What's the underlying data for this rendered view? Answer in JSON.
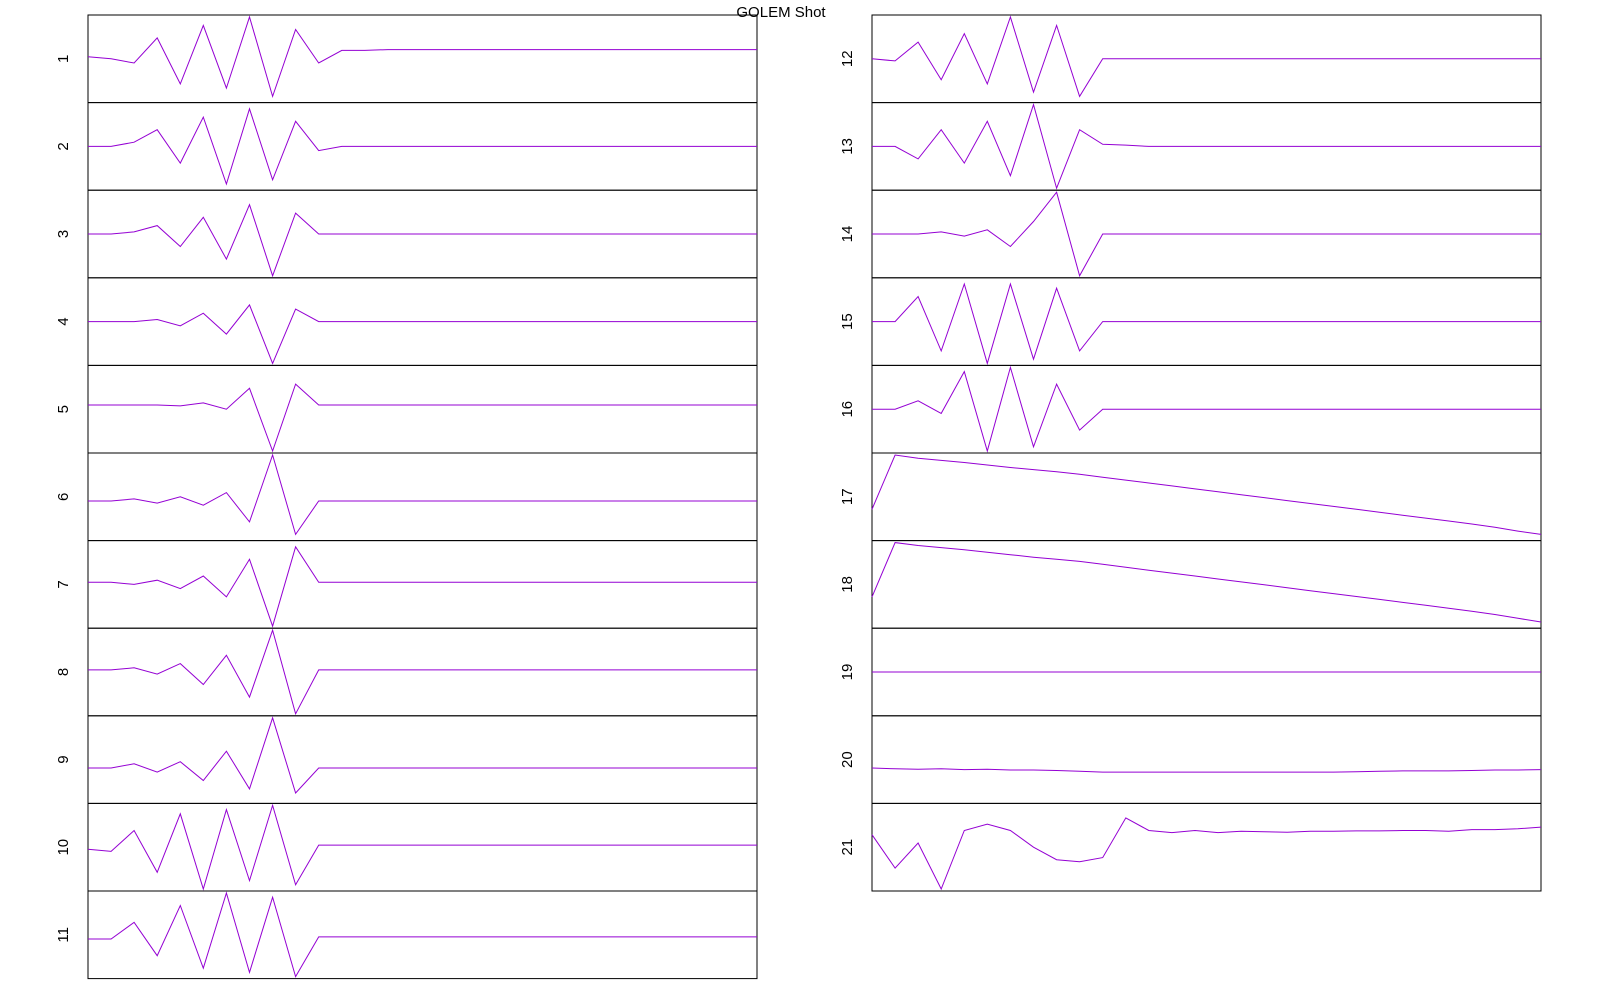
{
  "title": "GOLEM Shot",
  "chart_data": [
    {
      "type": "line",
      "ylabel": "1",
      "color": "#9400d3",
      "ylim": [
        -1,
        1
      ],
      "values": [
        0.05,
        0,
        -0.1,
        0.5,
        -0.6,
        0.8,
        -0.7,
        1,
        -0.9,
        0.7,
        -0.1,
        0.2,
        0.2,
        0.22,
        0.22,
        0.22,
        0.22,
        0.22,
        0.22,
        0.22,
        0.22,
        0.22,
        0.22,
        0.22,
        0.22,
        0.22,
        0.22,
        0.22,
        0.22,
        0.22
      ]
    },
    {
      "type": "line",
      "ylabel": "2",
      "color": "#9400d3",
      "ylim": [
        -1,
        1
      ],
      "values": [
        0,
        0,
        0.1,
        0.4,
        -0.4,
        0.7,
        -0.9,
        0.9,
        -0.8,
        0.6,
        -0.1,
        0,
        0,
        0,
        0,
        0,
        0,
        0,
        0,
        0,
        0,
        0,
        0,
        0,
        0,
        0,
        0,
        0,
        0,
        0
      ]
    },
    {
      "type": "line",
      "ylabel": "3",
      "color": "#9400d3",
      "ylim": [
        -1,
        1
      ],
      "values": [
        0,
        0,
        0.05,
        0.2,
        -0.3,
        0.4,
        -0.6,
        0.7,
        -1,
        0.5,
        0,
        0,
        0,
        0,
        0,
        0,
        0,
        0,
        0,
        0,
        0,
        0,
        0,
        0,
        0,
        0,
        0,
        0,
        0,
        0
      ]
    },
    {
      "type": "line",
      "ylabel": "4",
      "color": "#9400d3",
      "ylim": [
        -1,
        1
      ],
      "values": [
        0,
        0,
        0,
        0.05,
        -0.1,
        0.2,
        -0.3,
        0.4,
        -1,
        0.3,
        0,
        0,
        0,
        0,
        0,
        0,
        0,
        0,
        0,
        0,
        0,
        0,
        0,
        0,
        0,
        0,
        0,
        0,
        0,
        0
      ]
    },
    {
      "type": "line",
      "ylabel": "5",
      "color": "#9400d3",
      "ylim": [
        -1,
        1
      ],
      "values": [
        0.1,
        0.1,
        0.1,
        0.1,
        0.08,
        0.15,
        0,
        0.5,
        -1,
        0.6,
        0.1,
        0.1,
        0.1,
        0.1,
        0.1,
        0.1,
        0.1,
        0.1,
        0.1,
        0.1,
        0.1,
        0.1,
        0.1,
        0.1,
        0.1,
        0.1,
        0.1,
        0.1,
        0.1,
        0.1
      ]
    },
    {
      "type": "line",
      "ylabel": "6",
      "color": "#9400d3",
      "ylim": [
        -1,
        1
      ],
      "values": [
        -0.1,
        -0.1,
        -0.05,
        -0.15,
        0,
        -0.2,
        0.1,
        -0.6,
        1,
        -0.9,
        -0.1,
        -0.1,
        -0.1,
        -0.1,
        -0.1,
        -0.1,
        -0.1,
        -0.1,
        -0.1,
        -0.1,
        -0.1,
        -0.1,
        -0.1,
        -0.1,
        -0.1,
        -0.1,
        -0.1,
        -0.1,
        -0.1,
        -0.1
      ]
    },
    {
      "type": "line",
      "ylabel": "7",
      "color": "#9400d3",
      "ylim": [
        -1,
        1
      ],
      "values": [
        0.05,
        0.05,
        0,
        0.1,
        -0.1,
        0.2,
        -0.3,
        0.6,
        -1,
        0.9,
        0.05,
        0.05,
        0.05,
        0.05,
        0.05,
        0.05,
        0.05,
        0.05,
        0.05,
        0.05,
        0.05,
        0.05,
        0.05,
        0.05,
        0.05,
        0.05,
        0.05,
        0.05,
        0.05,
        0.05
      ]
    },
    {
      "type": "line",
      "ylabel": "8",
      "color": "#9400d3",
      "ylim": [
        -1,
        1
      ],
      "values": [
        0.05,
        0.05,
        0.1,
        -0.05,
        0.2,
        -0.3,
        0.4,
        -0.6,
        1,
        -1,
        0.05,
        0.05,
        0.05,
        0.05,
        0.05,
        0.05,
        0.05,
        0.05,
        0.05,
        0.05,
        0.05,
        0.05,
        0.05,
        0.05,
        0.05,
        0.05,
        0.05,
        0.05,
        0.05,
        0.05
      ]
    },
    {
      "type": "line",
      "ylabel": "9",
      "color": "#9400d3",
      "ylim": [
        -1,
        1
      ],
      "values": [
        -0.2,
        -0.2,
        -0.1,
        -0.3,
        -0.05,
        -0.5,
        0.2,
        -0.7,
        1,
        -0.8,
        -0.2,
        -0.2,
        -0.2,
        -0.2,
        -0.2,
        -0.2,
        -0.2,
        -0.2,
        -0.2,
        -0.2,
        -0.2,
        -0.2,
        -0.2,
        -0.2,
        -0.2,
        -0.2,
        -0.2,
        -0.2,
        -0.2,
        -0.2
      ]
    },
    {
      "type": "line",
      "ylabel": "10",
      "color": "#9400d3",
      "ylim": [
        -1,
        1
      ],
      "values": [
        -0.05,
        -0.1,
        0.4,
        -0.6,
        0.8,
        -1,
        0.9,
        -0.8,
        1,
        -0.9,
        0.05,
        0.05,
        0.05,
        0.05,
        0.05,
        0.05,
        0.05,
        0.05,
        0.05,
        0.05,
        0.05,
        0.05,
        0.05,
        0.05,
        0.05,
        0.05,
        0.05,
        0.05,
        0.05,
        0.05
      ]
    },
    {
      "type": "line",
      "ylabel": "11",
      "color": "#9400d3",
      "ylim": [
        -1,
        1
      ],
      "values": [
        -0.1,
        -0.1,
        0.3,
        -0.5,
        0.7,
        -0.8,
        1,
        -0.9,
        0.9,
        -1,
        -0.05,
        -0.05,
        -0.05,
        -0.05,
        -0.05,
        -0.05,
        -0.05,
        -0.05,
        -0.05,
        -0.05,
        -0.05,
        -0.05,
        -0.05,
        -0.05,
        -0.05,
        -0.05,
        -0.05,
        -0.05,
        -0.05,
        -0.05
      ]
    },
    {
      "type": "line",
      "ylabel": "12",
      "color": "#9400d3",
      "ylim": [
        -1,
        1
      ],
      "values": [
        0,
        -0.05,
        0.4,
        -0.5,
        0.6,
        -0.6,
        1,
        -0.8,
        0.8,
        -0.9,
        0,
        0,
        0,
        0,
        0,
        0,
        0,
        0,
        0,
        0,
        0,
        0,
        0,
        0,
        0,
        0,
        0,
        0,
        0,
        0
      ]
    },
    {
      "type": "line",
      "ylabel": "13",
      "color": "#9400d3",
      "ylim": [
        -1,
        1
      ],
      "values": [
        0,
        0,
        -0.3,
        0.4,
        -0.4,
        0.6,
        -0.7,
        1,
        -1,
        0.4,
        0.05,
        0.03,
        0,
        0,
        0,
        0,
        0,
        0,
        0,
        0,
        0,
        0,
        0,
        0,
        0,
        0,
        0,
        0,
        0,
        0
      ]
    },
    {
      "type": "line",
      "ylabel": "14",
      "color": "#9400d3",
      "ylim": [
        -1,
        1
      ],
      "values": [
        0,
        0,
        0,
        0.05,
        -0.05,
        0.1,
        -0.3,
        0.3,
        1,
        -1,
        0,
        0,
        0,
        0,
        0,
        0,
        0,
        0,
        0,
        0,
        0,
        0,
        0,
        0,
        0,
        0,
        0,
        0,
        0,
        0
      ]
    },
    {
      "type": "line",
      "ylabel": "15",
      "color": "#9400d3",
      "ylim": [
        -1,
        1
      ],
      "values": [
        0,
        0,
        0.6,
        -0.7,
        0.9,
        -1,
        0.9,
        -0.9,
        0.8,
        -0.7,
        0,
        0,
        0,
        0,
        0,
        0,
        0,
        0,
        0,
        0,
        0,
        0,
        0,
        0,
        0,
        0,
        0,
        0,
        0,
        0
      ]
    },
    {
      "type": "line",
      "ylabel": "16",
      "color": "#9400d3",
      "ylim": [
        -1,
        1
      ],
      "values": [
        0,
        0,
        0.2,
        -0.1,
        0.9,
        -1,
        1,
        -0.9,
        0.6,
        -0.5,
        0,
        0,
        0,
        0,
        0,
        0,
        0,
        0,
        0,
        0,
        0,
        0,
        0,
        0,
        0,
        0,
        0,
        0,
        0,
        0
      ]
    },
    {
      "type": "line",
      "ylabel": "17",
      "color": "#9400d3",
      "ylim": [
        -1,
        1
      ],
      "values": [
        -0.3,
        1,
        0.92,
        0.87,
        0.82,
        0.76,
        0.7,
        0.65,
        0.6,
        0.54,
        0.47,
        0.4,
        0.33,
        0.26,
        0.19,
        0.12,
        0.05,
        -0.02,
        -0.09,
        -0.16,
        -0.23,
        -0.3,
        -0.37,
        -0.44,
        -0.51,
        -0.58,
        -0.65,
        -0.73,
        -0.82,
        -0.9
      ]
    },
    {
      "type": "line",
      "ylabel": "18",
      "color": "#9400d3",
      "ylim": [
        -1,
        1
      ],
      "values": [
        -0.3,
        1,
        0.93,
        0.88,
        0.83,
        0.77,
        0.71,
        0.65,
        0.6,
        0.55,
        0.48,
        0.41,
        0.34,
        0.27,
        0.2,
        0.13,
        0.06,
        -0.01,
        -0.08,
        -0.15,
        -0.22,
        -0.29,
        -0.36,
        -0.43,
        -0.5,
        -0.57,
        -0.64,
        -0.72,
        -0.81,
        -0.9
      ]
    },
    {
      "type": "line",
      "ylabel": "19",
      "color": "#9400d3",
      "ylim": [
        -1,
        1
      ],
      "values": [
        0,
        0,
        0,
        0,
        0,
        0,
        0,
        0,
        0,
        0,
        0,
        0,
        0,
        0,
        0,
        0,
        0,
        0,
        0,
        0,
        0,
        0,
        0,
        0,
        0,
        0,
        0,
        0,
        0,
        0
      ]
    },
    {
      "type": "line",
      "ylabel": "20",
      "color": "#9400d3",
      "ylim": [
        -1,
        1
      ],
      "values": [
        -0.2,
        -0.22,
        -0.23,
        -0.22,
        -0.24,
        -0.23,
        -0.25,
        -0.25,
        -0.26,
        -0.28,
        -0.3,
        -0.3,
        -0.3,
        -0.3,
        -0.3,
        -0.3,
        -0.3,
        -0.3,
        -0.3,
        -0.3,
        -0.3,
        -0.29,
        -0.28,
        -0.27,
        -0.27,
        -0.27,
        -0.26,
        -0.25,
        -0.25,
        -0.24
      ]
    },
    {
      "type": "line",
      "ylabel": "21",
      "color": "#9400d3",
      "ylim": [
        -1,
        1
      ],
      "values": [
        0.3,
        -0.5,
        0.1,
        -1,
        0.4,
        0.55,
        0.4,
        0,
        -0.3,
        -0.35,
        -0.25,
        0.7,
        0.4,
        0.35,
        0.4,
        0.35,
        0.38,
        0.37,
        0.36,
        0.38,
        0.38,
        0.39,
        0.39,
        0.4,
        0.4,
        0.38,
        0.42,
        0.42,
        0.44,
        0.48
      ]
    }
  ]
}
